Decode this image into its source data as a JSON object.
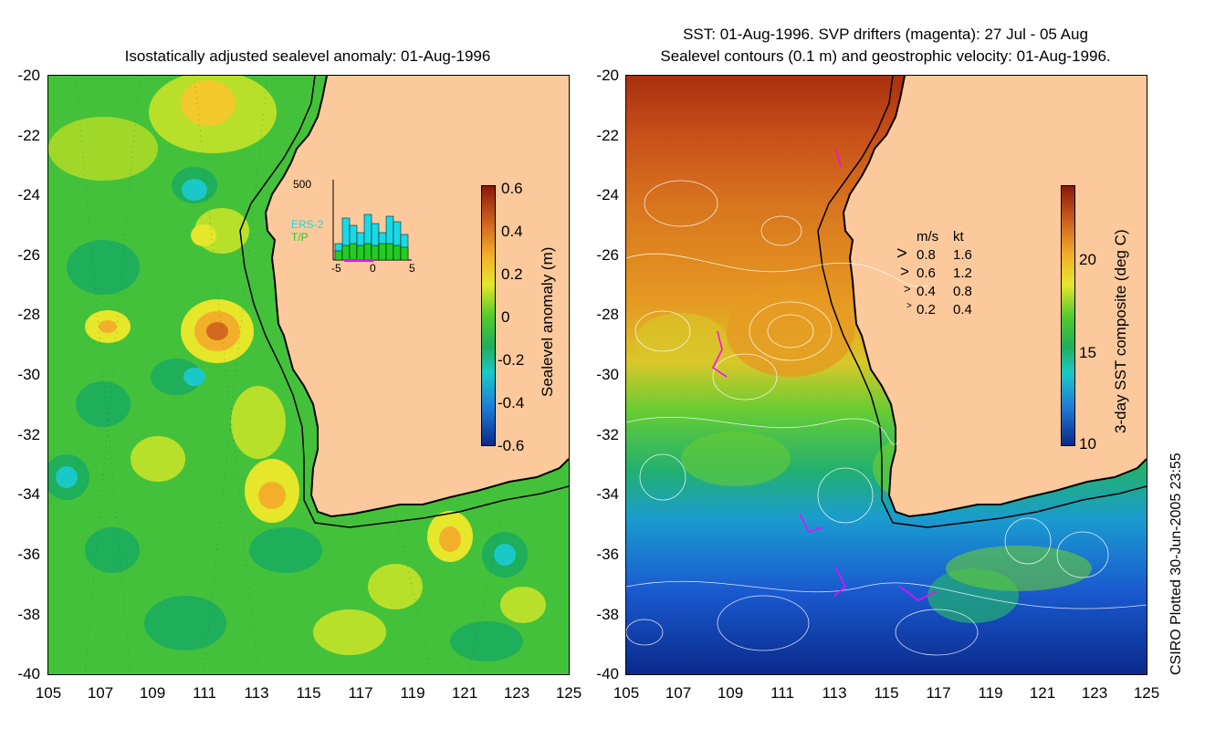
{
  "left_panel": {
    "title": "Isostatically adjusted sealevel anomaly: 01-Aug-1996",
    "y_ticks": [
      "-20",
      "-22",
      "-24",
      "-26",
      "-28",
      "-30",
      "-32",
      "-34",
      "-36",
      "-38",
      "-40"
    ],
    "x_ticks": [
      "105",
      "107",
      "109",
      "111",
      "113",
      "115",
      "117",
      "119",
      "121",
      "123",
      "125"
    ],
    "colorbar": {
      "label": "Sealevel anomaly (m)",
      "ticks": [
        "0.6",
        "0.4",
        "0.2",
        "0",
        "-0.2",
        "-0.4",
        "-0.6"
      ],
      "colors": [
        "#8b1a0a",
        "#d2691e",
        "#f2b02a",
        "#e6e62a",
        "#55cc2a",
        "#1fae5a",
        "#1ac8c8",
        "#1e7ed6",
        "#0a2a8c"
      ]
    },
    "inset": {
      "y_max_label": "500",
      "series_labels": [
        "ERS-2",
        "T/P"
      ],
      "x_ticks": [
        "-5",
        "0",
        "5"
      ],
      "colors": {
        "ers2": "#19d9e6",
        "tp": "#22cc22",
        "marker": "#ff00ff"
      }
    }
  },
  "right_panel": {
    "title_line1": "SST: 01-Aug-1996. SVP drifters (magenta): 27 Jul - 05 Aug",
    "title_line2": "Sealevel contours (0.1 m) and geostrophic velocity: 01-Aug-1996.",
    "y_ticks": [
      "-20",
      "-22",
      "-24",
      "-26",
      "-28",
      "-30",
      "-32",
      "-34",
      "-36",
      "-38",
      "-40"
    ],
    "x_ticks": [
      "105",
      "107",
      "109",
      "111",
      "113",
      "115",
      "117",
      "119",
      "121",
      "123",
      "125"
    ],
    "colorbar": {
      "label": "3-day SST composite (deg C)",
      "ticks": [
        "20",
        "15",
        "10"
      ],
      "colors": [
        "#8b1a0a",
        "#d2691e",
        "#f2b02a",
        "#e6e62a",
        "#55cc2a",
        "#1fae5a",
        "#1ac8c8",
        "#1e7ed6",
        "#0a2a8c"
      ]
    },
    "velocity_legend": {
      "header_ms": "m/s",
      "header_kt": "kt",
      "rows": [
        {
          "ms": "0.8",
          "kt": "1.6"
        },
        {
          "ms": "0.6",
          "kt": "1.2"
        },
        {
          "ms": "0.4",
          "kt": "0.8"
        },
        {
          "ms": "0.2",
          "kt": "0.4"
        }
      ]
    }
  },
  "footer_text": "CSIRO Plotted 30-Jun-2005 23:55",
  "colors": {
    "land": "#fcc99c",
    "coast": "#000000"
  }
}
